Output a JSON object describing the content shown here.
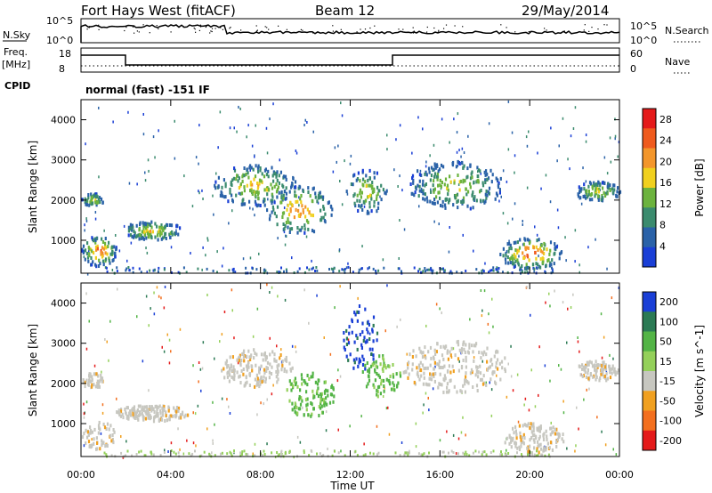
{
  "header": {
    "station": "Fort Hays West (fitACF)",
    "beam": "Beam 12",
    "date": "29/May/2014"
  },
  "strip": {
    "nsky_label": "N.Sky",
    "nsearch_label": "N.Search",
    "noise_ticks": [
      "10^5",
      "10^0"
    ],
    "freq_label": "Freq.",
    "freq_unit": "[MHz]",
    "freq_ticks": [
      "18",
      "8"
    ],
    "nave_label": "Nave",
    "nave_ticks": [
      "60",
      "0"
    ],
    "cpid_label": "CPID",
    "cpid_value": "normal (fast) -151 IF"
  },
  "chart_data": [
    {
      "type": "heatmap",
      "name": "power",
      "ylabel": "Slant Range [km]",
      "xlabel": "Time UT",
      "xticks": [
        "00:00",
        "04:00",
        "08:00",
        "12:00",
        "16:00",
        "20:00",
        "00:00"
      ],
      "xlim_hours": [
        0,
        24
      ],
      "yticks": [
        1000,
        2000,
        3000,
        4000
      ],
      "ylim": [
        180,
        4500
      ],
      "colorbar": {
        "label": "Power [dB]",
        "ticks": [
          4,
          8,
          12,
          16,
          20,
          24,
          28
        ],
        "range": [
          0,
          30
        ],
        "colors": [
          "#1a3fd6",
          "#2a62a8",
          "#3b8b6e",
          "#6cb33e",
          "#f0d01e",
          "#f3962b",
          "#ef5a1d",
          "#e41a1a"
        ]
      },
      "features": [
        {
          "t0": 0.0,
          "t1": 1.6,
          "r0": 380,
          "r1": 1150,
          "level": 0.85
        },
        {
          "t0": 0.0,
          "t1": 1.0,
          "r0": 1900,
          "r1": 2200,
          "level": 0.55
        },
        {
          "t0": 1.8,
          "t1": 4.5,
          "r0": 1050,
          "r1": 1500,
          "level": 0.6
        },
        {
          "t0": 5.8,
          "t1": 9.6,
          "r0": 1900,
          "r1": 2900,
          "level": 0.6
        },
        {
          "t0": 8.2,
          "t1": 11.2,
          "r0": 1200,
          "r1": 2400,
          "level": 0.75
        },
        {
          "t0": 11.8,
          "t1": 13.6,
          "r0": 1700,
          "r1": 2800,
          "level": 0.55
        },
        {
          "t0": 14.5,
          "t1": 18.8,
          "r0": 1800,
          "r1": 3000,
          "level": 0.5
        },
        {
          "t0": 18.6,
          "t1": 21.4,
          "r0": 300,
          "r1": 1100,
          "level": 0.9
        },
        {
          "t0": 22.0,
          "t1": 24.0,
          "r0": 2000,
          "r1": 2500,
          "level": 0.55
        }
      ]
    },
    {
      "type": "heatmap",
      "name": "velocity",
      "ylabel": "Slant Range [km]",
      "xlabel": "Time UT",
      "xticks": [
        "00:00",
        "04:00",
        "08:00",
        "12:00",
        "16:00",
        "20:00",
        "00:00"
      ],
      "xlim_hours": [
        0,
        24
      ],
      "yticks": [
        1000,
        2000,
        3000,
        4000
      ],
      "ylim": [
        180,
        4500
      ],
      "colorbar": {
        "label": "Velocity [m s^-1]",
        "ticks": [
          200,
          100,
          50,
          15,
          -15,
          -50,
          -100,
          -200
        ],
        "colors": [
          "#1a3fd6",
          "#2b7a54",
          "#53b446",
          "#94d05a",
          "#c7c7c0",
          "#f0a020",
          "#f36f1e",
          "#e41a1a"
        ]
      },
      "features": [
        {
          "t0": 0.0,
          "t1": 1.5,
          "r0": 400,
          "r1": 1100,
          "velocity": 0
        },
        {
          "t0": 0.0,
          "t1": 1.0,
          "r0": 1900,
          "r1": 2300,
          "velocity": 0
        },
        {
          "t0": 1.5,
          "t1": 4.8,
          "r0": 1100,
          "r1": 1500,
          "velocity": 0
        },
        {
          "t0": 6.0,
          "t1": 9.4,
          "r0": 1950,
          "r1": 2900,
          "velocity": 0
        },
        {
          "t0": 9.0,
          "t1": 11.3,
          "r0": 1200,
          "r1": 2300,
          "velocity": 60
        },
        {
          "t0": 11.6,
          "t1": 13.2,
          "r0": 2300,
          "r1": 4000,
          "velocity": 220
        },
        {
          "t0": 12.5,
          "t1": 14.2,
          "r0": 1700,
          "r1": 2800,
          "velocity": 60
        },
        {
          "t0": 14.2,
          "t1": 19.0,
          "r0": 1800,
          "r1": 3100,
          "velocity": 0
        },
        {
          "t0": 18.8,
          "t1": 21.5,
          "r0": 300,
          "r1": 1050,
          "velocity": 0
        },
        {
          "t0": 22.0,
          "t1": 24.0,
          "r0": 2100,
          "r1": 2600,
          "velocity": 0
        }
      ]
    }
  ]
}
